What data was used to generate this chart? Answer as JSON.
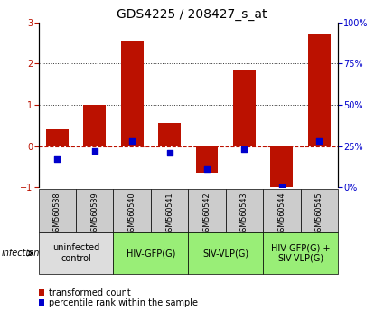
{
  "title": "GDS4225 / 208427_s_at",
  "samples": [
    "GSM560538",
    "GSM560539",
    "GSM560540",
    "GSM560541",
    "GSM560542",
    "GSM560543",
    "GSM560544",
    "GSM560545"
  ],
  "transformed_count": [
    0.4,
    1.0,
    2.55,
    0.55,
    -0.65,
    1.85,
    -1.05,
    2.7
  ],
  "percentile_rank": [
    17,
    22,
    28,
    21,
    11,
    23,
    0,
    28
  ],
  "ylim_left": [
    -1,
    3
  ],
  "ylim_right": [
    0,
    100
  ],
  "yticks_left": [
    -1,
    0,
    1,
    2,
    3
  ],
  "yticks_right": [
    0,
    25,
    50,
    75,
    100
  ],
  "bar_color": "#bb1100",
  "dot_color": "#0000cc",
  "hline_color": "#bb1100",
  "dotted_line_color": "#333333",
  "groups": [
    {
      "label": "uninfected\ncontrol",
      "start": 0,
      "end": 2,
      "color": "#dddddd"
    },
    {
      "label": "HIV-GFP(G)",
      "start": 2,
      "end": 4,
      "color": "#99ee77"
    },
    {
      "label": "SIV-VLP(G)",
      "start": 4,
      "end": 6,
      "color": "#99ee77"
    },
    {
      "label": "HIV-GFP(G) +\nSIV-VLP(G)",
      "start": 6,
      "end": 8,
      "color": "#99ee77"
    }
  ],
  "legend_bar_label": "transformed count",
  "legend_dot_label": "percentile rank within the sample",
  "infection_label": "infection",
  "sample_box_color": "#cccccc",
  "title_fontsize": 10,
  "tick_fontsize": 7,
  "group_fontsize": 7,
  "legend_fontsize": 7
}
